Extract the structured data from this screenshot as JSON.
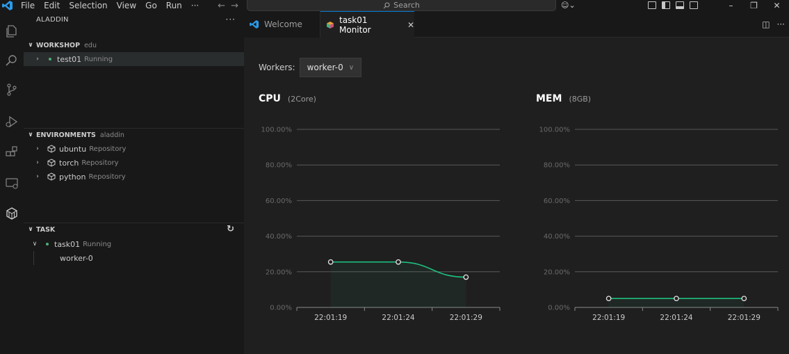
{
  "menu": [
    "File",
    "Edit",
    "Selection",
    "View",
    "Go",
    "Run",
    "···"
  ],
  "search": {
    "label": "Search"
  },
  "sidebar": {
    "title": "ALADDIN",
    "workshop": {
      "label": "WORKSHOP",
      "desc": "edu",
      "items": [
        {
          "name": "test01",
          "status": "Running"
        }
      ]
    },
    "environments": {
      "label": "ENVIRONMENTS",
      "desc": "aladdin",
      "items": [
        {
          "name": "ubuntu",
          "desc": "Repository"
        },
        {
          "name": "torch",
          "desc": "Repository"
        },
        {
          "name": "python",
          "desc": "Repository"
        }
      ]
    },
    "task": {
      "label": "TASK",
      "items": [
        {
          "name": "task01",
          "status": "Running",
          "children": [
            "worker-0"
          ]
        }
      ]
    }
  },
  "tabs": [
    {
      "label": "Welcome",
      "active": false
    },
    {
      "label": "task01 Monitor",
      "active": true
    }
  ],
  "monitor": {
    "workers_label": "Workers:",
    "selected_worker": "worker-0",
    "cpu": {
      "title": "CPU",
      "subtitle": "(2Core)"
    },
    "mem": {
      "title": "MEM",
      "subtitle": "(8GB)"
    }
  },
  "colors": {
    "accent": "#0078d4",
    "series": "#1fbf7f",
    "running": "#4caf77"
  },
  "chart_data": [
    {
      "type": "line",
      "title": "CPU",
      "subtitle": "(2Core)",
      "x": [
        "22:01:19",
        "22:01:24",
        "22:01:29"
      ],
      "series": [
        {
          "values": [
            25.5,
            25.5,
            17
          ]
        }
      ],
      "ylim": [
        0,
        100
      ],
      "yticks": [
        "0.00%",
        "20.00%",
        "40.00%",
        "60.00%",
        "80.00%",
        "100.00%"
      ],
      "grid": true
    },
    {
      "type": "line",
      "title": "MEM",
      "subtitle": "(8GB)",
      "x": [
        "22:01:19",
        "22:01:24",
        "22:01:29"
      ],
      "series": [
        {
          "values": [
            5,
            5,
            5
          ]
        }
      ],
      "ylim": [
        0,
        100
      ],
      "yticks": [
        "0.00%",
        "20.00%",
        "40.00%",
        "60.00%",
        "80.00%",
        "100.00%"
      ],
      "grid": true
    }
  ]
}
